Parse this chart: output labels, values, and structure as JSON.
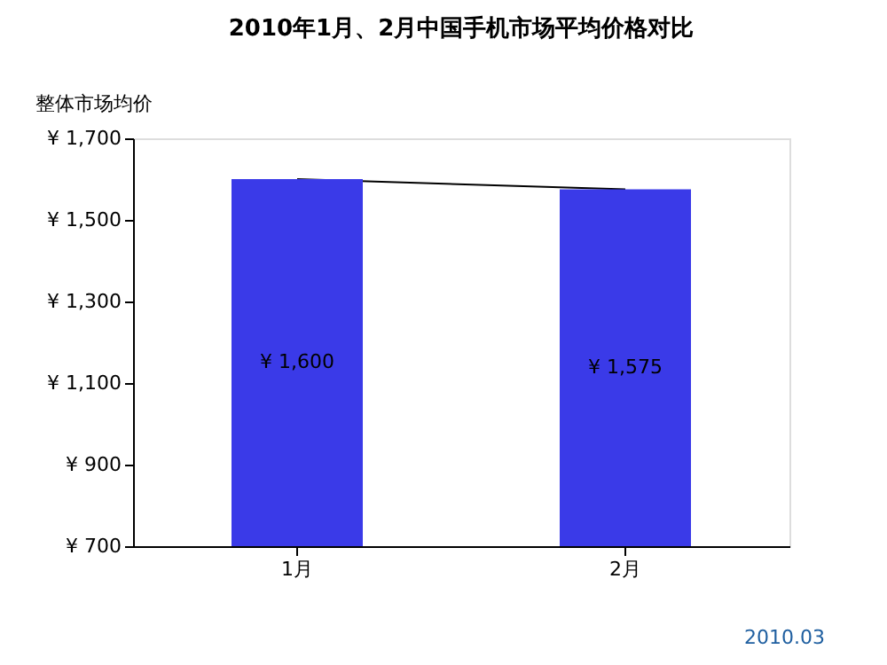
{
  "chart_data": {
    "type": "bar",
    "title": "2010年1月、2月中国手机市场平均价格对比",
    "ylabel": "整体市场均价",
    "categories": [
      "1月",
      "2月"
    ],
    "series": [
      {
        "color": "#3a3ae8",
        "values": [
          1600,
          1575
        ],
        "value_labels": [
          "¥ 1,600",
          "¥ 1,575"
        ]
      },
      {
        "type": "line",
        "color": "#000000",
        "values": [
          1600,
          1575
        ]
      }
    ],
    "ylim": [
      700,
      1700
    ],
    "yticks": [
      {
        "value": 700,
        "label": "¥ 700"
      },
      {
        "value": 900,
        "label": "¥ 900"
      },
      {
        "value": 1100,
        "label": "¥ 1,100"
      },
      {
        "value": 1300,
        "label": "¥ 1,300"
      },
      {
        "value": 1500,
        "label": "¥ 1,500"
      },
      {
        "value": 1700,
        "label": "¥ 1,700"
      }
    ],
    "grid": false,
    "annotations": [
      "2010.03"
    ]
  }
}
